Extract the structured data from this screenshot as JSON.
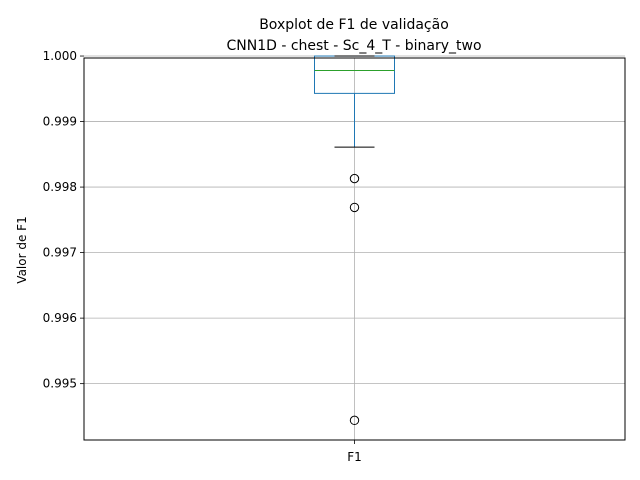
{
  "chart_data": {
    "type": "boxplot",
    "title": "Boxplot de F1 de validação",
    "subtitle": "CNN1D - chest - Sc_4_T - binary_two",
    "xlabel": "",
    "ylabel": "Valor de F1",
    "categories": [
      "F1"
    ],
    "ylim": [
      0.99414,
      0.99997
    ],
    "yticks": [
      {
        "value": 0.995,
        "label": "0.995"
      },
      {
        "value": 0.996,
        "label": "0.996"
      },
      {
        "value": 0.997,
        "label": "0.997"
      },
      {
        "value": 0.998,
        "label": "0.998"
      },
      {
        "value": 0.999,
        "label": "0.999"
      },
      {
        "value": 1.0,
        "label": "1.000"
      }
    ],
    "grid": true,
    "boxes": [
      {
        "category": "F1",
        "whisker_low": 0.99861,
        "q1": 0.99943,
        "median": 0.99978,
        "q3": 1.0,
        "whisker_high": 1.0,
        "outliers": [
          0.99813,
          0.99769,
          0.99444
        ]
      }
    ],
    "colors": {
      "box": "#1f77b4",
      "median": "#2ca02c",
      "cap": "#000000",
      "grid": "#b0b0b0",
      "outlier_edge": "#000000"
    }
  }
}
